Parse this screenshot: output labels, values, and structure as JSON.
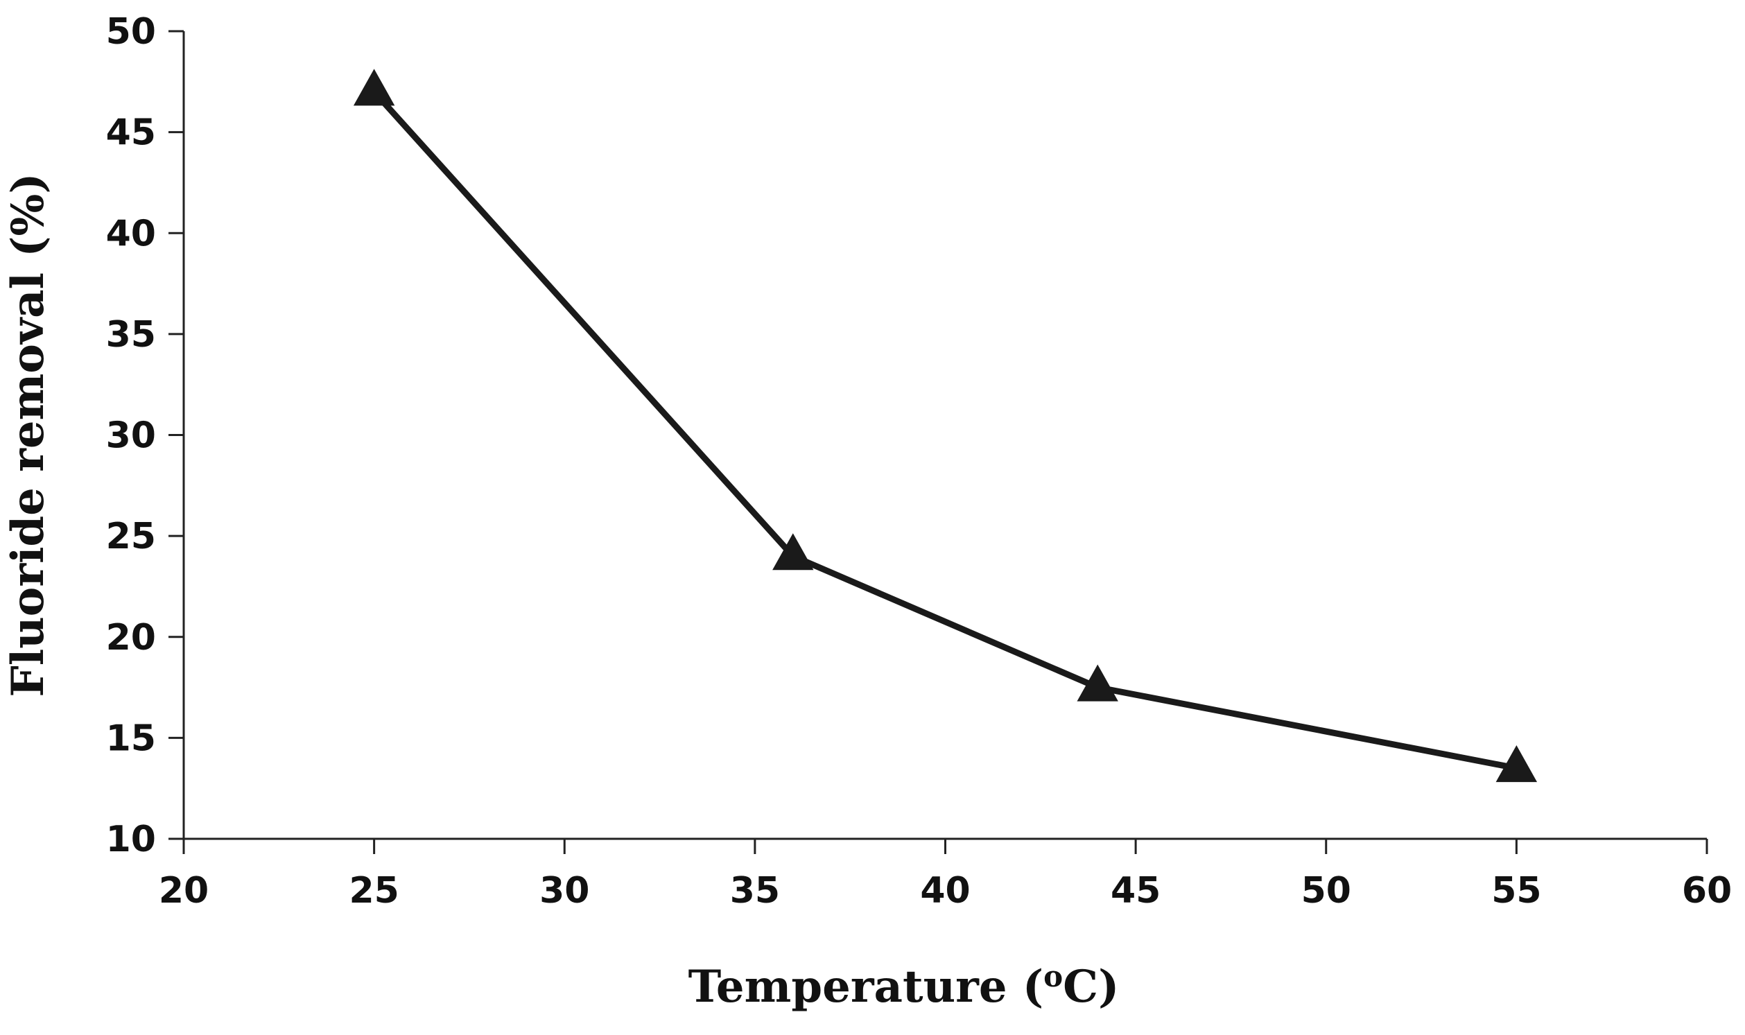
{
  "chart_data": {
    "type": "line",
    "title": "",
    "xlabel": "Temperature (",
    "xlabel_sup": "o",
    "xlabel_tail": "C)",
    "ylabel": "Fluoride removal (%)",
    "xlim": [
      20,
      60
    ],
    "ylim": [
      10,
      50
    ],
    "xticks": [
      20,
      25,
      30,
      35,
      40,
      45,
      50,
      55,
      60
    ],
    "yticks": [
      10,
      15,
      20,
      25,
      30,
      35,
      40,
      45,
      50
    ],
    "grid": false,
    "legend": "none",
    "series": [
      {
        "name": "Fluoride removal",
        "marker": "triangle",
        "color": "#1a1a1a",
        "x": [
          25,
          36,
          44,
          55
        ],
        "y": [
          47,
          24,
          17.5,
          13.5
        ]
      }
    ]
  }
}
